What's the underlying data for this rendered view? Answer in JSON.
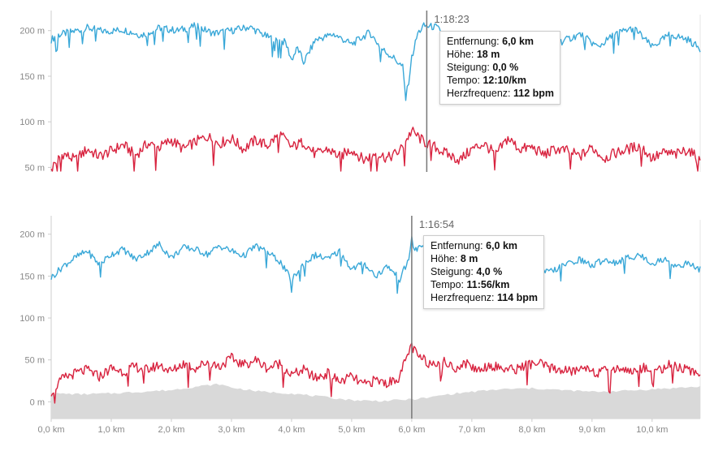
{
  "colors": {
    "speed": "#3aa8d8",
    "heart_rate": "#d8233f",
    "elevation_fill": "#d9d9d9",
    "axis": "#cccccc",
    "cursor": "#777777"
  },
  "chart_data": [
    {
      "type": "line",
      "title": "",
      "xlabel": "",
      "ylabel": "",
      "xlim": [
        0,
        10.8
      ],
      "ylim": [
        45,
        222
      ],
      "y_ticks": [
        {
          "value": 50,
          "label": "50 m"
        },
        {
          "value": 100,
          "label": "100 m"
        },
        {
          "value": 150,
          "label": "150 m"
        },
        {
          "value": 200,
          "label": "200 m"
        }
      ],
      "x_ticks": [],
      "cursor": {
        "x": 6.25,
        "time": "1:18:23",
        "rows": [
          {
            "label": "Entfernung:",
            "value": "6,0 km"
          },
          {
            "label": "Höhe:",
            "value": "18 m"
          },
          {
            "label": "Steigung:",
            "value": "0,0 %"
          },
          {
            "label": "Tempo:",
            "value": "12:10/km"
          },
          {
            "label": "Herzfrequenz:",
            "value": "112 bpm"
          }
        ]
      },
      "series": [
        {
          "key": "blue",
          "x": [
            0,
            0.1,
            0.3,
            0.6,
            0.9,
            1.2,
            1.5,
            1.8,
            2.1,
            2.4,
            2.7,
            3.0,
            3.3,
            3.6,
            3.9,
            4.0,
            4.1,
            4.2,
            4.4,
            4.7,
            5.0,
            5.3,
            5.5,
            5.7,
            5.85,
            5.9,
            5.95,
            6.0,
            6.1,
            6.2,
            6.4,
            6.7,
            7.0,
            7.3,
            7.6,
            7.9,
            8.2,
            8.5,
            8.8,
            9.1,
            9.4,
            9.7,
            10.0,
            10.3,
            10.6,
            10.8
          ],
          "values": [
            190,
            195,
            198,
            203,
            199,
            201,
            195,
            203,
            200,
            205,
            197,
            200,
            204,
            193,
            187,
            168,
            181,
            165,
            190,
            196,
            185,
            198,
            180,
            170,
            160,
            125,
            145,
            170,
            197,
            205,
            204,
            187,
            194,
            197,
            190,
            185,
            195,
            188,
            196,
            182,
            197,
            203,
            182,
            196,
            190,
            180
          ]
        },
        {
          "key": "red",
          "x": [
            0,
            0.2,
            0.4,
            0.6,
            0.8,
            1.0,
            1.2,
            1.4,
            1.6,
            1.8,
            2.0,
            2.2,
            2.4,
            2.6,
            2.8,
            3.0,
            3.2,
            3.4,
            3.6,
            3.8,
            4.0,
            4.2,
            4.4,
            4.6,
            4.8,
            5.0,
            5.2,
            5.4,
            5.6,
            5.8,
            6.0,
            6.2,
            6.4,
            6.6,
            6.8,
            7.0,
            7.2,
            7.4,
            7.6,
            7.8,
            8.0,
            8.2,
            8.4,
            8.6,
            8.8,
            9.0,
            9.2,
            9.4,
            9.6,
            9.8,
            10.0,
            10.2,
            10.4,
            10.6,
            10.8
          ],
          "values": [
            52,
            65,
            58,
            70,
            62,
            68,
            75,
            63,
            76,
            72,
            80,
            70,
            78,
            84,
            76,
            82,
            70,
            80,
            74,
            87,
            72,
            78,
            64,
            70,
            62,
            70,
            58,
            66,
            60,
            68,
            90,
            78,
            72,
            64,
            58,
            70,
            76,
            64,
            82,
            70,
            72,
            64,
            70,
            68,
            62,
            72,
            60,
            66,
            70,
            74,
            60,
            66,
            64,
            70,
            56
          ]
        }
      ]
    },
    {
      "type": "line",
      "title": "",
      "xlabel": "",
      "ylabel": "",
      "xlim": [
        0,
        10.8
      ],
      "ylim": [
        -20,
        222
      ],
      "y_ticks": [
        {
          "value": 0,
          "label": "0 m"
        },
        {
          "value": 50,
          "label": "50 m"
        },
        {
          "value": 100,
          "label": "100 m"
        },
        {
          "value": 150,
          "label": "150 m"
        },
        {
          "value": 200,
          "label": "200 m"
        }
      ],
      "x_ticks": [
        {
          "value": 0,
          "label": "0,0 km"
        },
        {
          "value": 1,
          "label": "1,0 km"
        },
        {
          "value": 2,
          "label": "2,0 km"
        },
        {
          "value": 3,
          "label": "3,0 km"
        },
        {
          "value": 4,
          "label": "4,0 km"
        },
        {
          "value": 5,
          "label": "5,0 km"
        },
        {
          "value": 6,
          "label": "6,0 km"
        },
        {
          "value": 7,
          "label": "7,0 km"
        },
        {
          "value": 8,
          "label": "8,0 km"
        },
        {
          "value": 9,
          "label": "9,0 km"
        },
        {
          "value": 10,
          "label": "10,0 km"
        }
      ],
      "cursor": {
        "x": 6.0,
        "time": "1:16:54",
        "rows": [
          {
            "label": "Entfernung:",
            "value": "6,0 km"
          },
          {
            "label": "Höhe:",
            "value": "8 m"
          },
          {
            "label": "Steigung:",
            "value": "4,0 %"
          },
          {
            "label": "Tempo:",
            "value": "11:56/km"
          },
          {
            "label": "Herzfrequenz:",
            "value": "114 bpm"
          }
        ]
      },
      "series": [
        {
          "key": "area",
          "x": [
            0,
            0.5,
            1.0,
            1.5,
            2.0,
            2.5,
            2.8,
            3.0,
            3.5,
            4.0,
            4.5,
            5.0,
            5.5,
            6.0,
            6.3,
            6.5,
            7.0,
            7.5,
            8.0,
            8.5,
            9.0,
            9.5,
            10.0,
            10.5,
            10.8
          ],
          "values": [
            10,
            9,
            10,
            12,
            14,
            19,
            21,
            17,
            12,
            10,
            6,
            2,
            1,
            3,
            5,
            8,
            12,
            15,
            16,
            14,
            12,
            13,
            15,
            17,
            18
          ]
        },
        {
          "key": "blue",
          "x": [
            0,
            0.2,
            0.4,
            0.6,
            0.8,
            1.0,
            1.2,
            1.4,
            1.6,
            1.8,
            2.0,
            2.2,
            2.4,
            2.6,
            2.8,
            3.0,
            3.2,
            3.4,
            3.6,
            3.8,
            4.0,
            4.2,
            4.4,
            4.6,
            4.8,
            5.0,
            5.2,
            5.4,
            5.6,
            5.8,
            5.95,
            6.0,
            6.05,
            6.2,
            6.4,
            6.6,
            6.8,
            7.0,
            7.2,
            7.4,
            7.6,
            7.8,
            8.0,
            8.2,
            8.4,
            8.6,
            8.8,
            9.0,
            9.2,
            9.4,
            9.6,
            9.8,
            10.0,
            10.2,
            10.4,
            10.6,
            10.8
          ],
          "values": [
            148,
            162,
            172,
            180,
            164,
            176,
            182,
            170,
            178,
            188,
            172,
            184,
            182,
            176,
            186,
            180,
            174,
            186,
            178,
            168,
            145,
            165,
            175,
            170,
            180,
            158,
            166,
            150,
            162,
            146,
            170,
            195,
            180,
            188,
            176,
            160,
            170,
            150,
            166,
            156,
            168,
            150,
            160,
            154,
            158,
            165,
            170,
            162,
            170,
            166,
            172,
            175,
            165,
            170,
            162,
            165,
            158
          ]
        },
        {
          "key": "red",
          "x": [
            0,
            0.2,
            0.4,
            0.6,
            0.8,
            1.0,
            1.2,
            1.4,
            1.6,
            1.8,
            2.0,
            2.2,
            2.4,
            2.6,
            2.8,
            3.0,
            3.2,
            3.4,
            3.6,
            3.8,
            4.0,
            4.2,
            4.4,
            4.6,
            4.8,
            5.0,
            5.2,
            5.4,
            5.6,
            5.8,
            5.95,
            6.0,
            6.1,
            6.3,
            6.5,
            6.7,
            6.9,
            7.1,
            7.3,
            7.5,
            7.7,
            7.9,
            8.1,
            8.3,
            8.5,
            8.7,
            8.9,
            9.1,
            9.3,
            9.5,
            9.7,
            9.9,
            10.1,
            10.3,
            10.5,
            10.7,
            10.8
          ],
          "values": [
            12,
            28,
            34,
            38,
            30,
            40,
            36,
            42,
            38,
            44,
            36,
            46,
            40,
            48,
            42,
            52,
            44,
            50,
            40,
            46,
            32,
            38,
            28,
            34,
            24,
            30,
            20,
            26,
            22,
            30,
            60,
            66,
            54,
            46,
            50,
            40,
            46,
            38,
            44,
            40,
            38,
            44,
            46,
            40,
            38,
            36,
            42,
            34,
            38,
            40,
            36,
            42,
            38,
            44,
            40,
            34,
            36
          ]
        }
      ]
    }
  ]
}
